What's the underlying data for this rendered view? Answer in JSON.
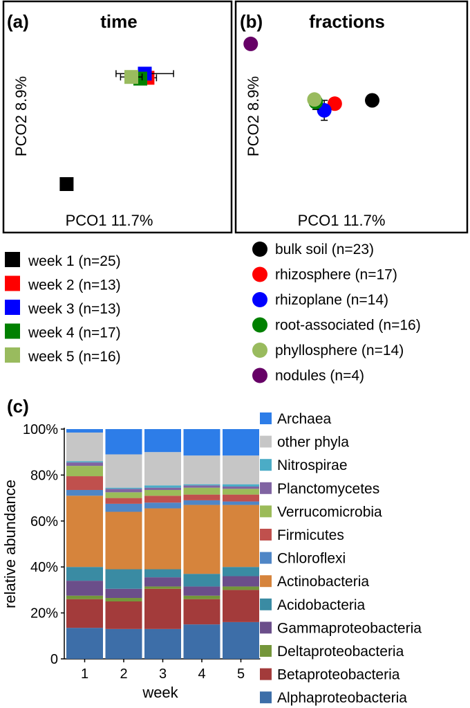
{
  "panels": {
    "a": {
      "tag": "(a)",
      "title": "time",
      "xlabel": "PCO1 11.7%",
      "ylabel": "PCO2 8.9%"
    },
    "b": {
      "tag": "(b)",
      "title": "fractions",
      "xlabel": "PCO1 11.7%",
      "ylabel": "PCO2 8.9%"
    },
    "c": {
      "tag": "(c)"
    }
  },
  "colors": {
    "week1": "#000000",
    "week2": "#ff0000",
    "week3": "#0000ff",
    "week4": "#008000",
    "week5": "#99bb5e",
    "bulk_soil": "#000000",
    "rhizosphere": "#ff0000",
    "rhizoplane": "#0000ff",
    "root_associated": "#008000",
    "phyllosphere": "#99bb5e",
    "nodules": "#660066"
  },
  "chart_data": [
    {
      "type": "scatter",
      "title": "time",
      "xlabel": "PCO1 11.7%",
      "ylabel": "PCO2 8.9%",
      "marker": "square",
      "series": [
        {
          "name": "week 1 (n=25)",
          "x": -0.72,
          "y": -0.8,
          "xerr": 0.06,
          "yerr": 0.03,
          "color": "#000000"
        },
        {
          "name": "week 2 (n=13)",
          "x": 0.18,
          "y": 0.48,
          "xerr": 0.1,
          "yerr": 0.05,
          "color": "#ff0000"
        },
        {
          "name": "week 3 (n=13)",
          "x": 0.15,
          "y": 0.53,
          "xerr": 0.32,
          "yerr": 0.02,
          "color": "#0000ff"
        },
        {
          "name": "week 4 (n=17)",
          "x": 0.1,
          "y": 0.47,
          "xerr": 0.05,
          "yerr": 0.03,
          "color": "#008000"
        },
        {
          "name": "week 5 (n=16)",
          "x": 0.0,
          "y": 0.49,
          "xerr": 0.12,
          "yerr": 0.03,
          "color": "#99bb5e"
        }
      ]
    },
    {
      "type": "scatter",
      "title": "fractions",
      "xlabel": "PCO1 11.7%",
      "ylabel": "PCO2 8.9%",
      "marker": "circle",
      "series": [
        {
          "name": "bulk soil (n=23)",
          "x": 0.9,
          "y": 0.2,
          "xerr": 0.03,
          "yerr": 0.06,
          "color": "#000000"
        },
        {
          "name": "rhizosphere (n=17)",
          "x": 0.33,
          "y": 0.16,
          "xerr": 0.07,
          "yerr": 0.07,
          "color": "#ff0000"
        },
        {
          "name": "rhizoplane (n=14)",
          "x": 0.17,
          "y": 0.08,
          "xerr": 0.03,
          "yerr": 0.12,
          "color": "#0000ff"
        },
        {
          "name": "root-associated (n=16)",
          "x": 0.04,
          "y": 0.18,
          "xerr": 0.04,
          "yerr": 0.09,
          "color": "#008000"
        },
        {
          "name": "phyllosphere (n=14)",
          "x": 0.02,
          "y": 0.21,
          "xerr": 0.03,
          "yerr": 0.05,
          "color": "#99bb5e"
        },
        {
          "name": "nodules (n=4)",
          "x": -0.95,
          "y": 0.88,
          "xerr": 0.0,
          "yerr": 0.0,
          "color": "#660066"
        }
      ]
    },
    {
      "type": "bar",
      "stacked": true,
      "xlabel": "week",
      "ylabel": "relative abundance",
      "categories": [
        "1",
        "2",
        "3",
        "4",
        "5"
      ],
      "ylim": [
        0,
        100
      ],
      "yticks": [
        "0",
        "20%",
        "40%",
        "60%",
        "80%",
        "100%"
      ],
      "series": [
        {
          "name": "Alphaproteobacteria",
          "color": "#3d6ea8",
          "values": [
            13.5,
            13,
            13,
            15,
            16
          ]
        },
        {
          "name": "Betaproteobacteria",
          "color": "#a33b3b",
          "values": [
            12.5,
            12,
            17.5,
            11,
            14
          ]
        },
        {
          "name": "Deltaproteobacteria",
          "color": "#74963a",
          "values": [
            1.5,
            1.5,
            1,
            1.5,
            1.5
          ]
        },
        {
          "name": "Gammaproteobacteria",
          "color": "#6b4e8a",
          "values": [
            6.5,
            4,
            4,
            4,
            4.5
          ]
        },
        {
          "name": "Acidobacteria",
          "color": "#3a8ba3",
          "values": [
            6,
            8.5,
            3.5,
            5.5,
            4
          ]
        },
        {
          "name": "Actinobacteria",
          "color": "#d6843c",
          "values": [
            31,
            25,
            26.5,
            30,
            27
          ]
        },
        {
          "name": "Chloroflexi",
          "color": "#4f86c6",
          "values": [
            2.5,
            3.5,
            2.5,
            2,
            1.5
          ]
        },
        {
          "name": "Firmicutes",
          "color": "#c0504d",
          "values": [
            6,
            2.5,
            3,
            2.5,
            3
          ]
        },
        {
          "name": "Verrucomicrobia",
          "color": "#9bbb59",
          "values": [
            4.5,
            2.5,
            2.5,
            3,
            2.5
          ]
        },
        {
          "name": "Planctomycetes",
          "color": "#8064a2",
          "values": [
            1.5,
            1.5,
            1,
            1,
            1
          ]
        },
        {
          "name": "Nitrospirae",
          "color": "#4bacc6",
          "values": [
            0.5,
            0.5,
            1,
            0.5,
            1
          ]
        },
        {
          "name": "other phyla",
          "color": "#c6c6c6",
          "values": [
            12.5,
            14.5,
            14.5,
            12.5,
            12.5
          ]
        },
        {
          "name": "Archaea",
          "color": "#2d7de8",
          "values": [
            1.5,
            11,
            10,
            11.5,
            11.5
          ]
        }
      ]
    }
  ]
}
